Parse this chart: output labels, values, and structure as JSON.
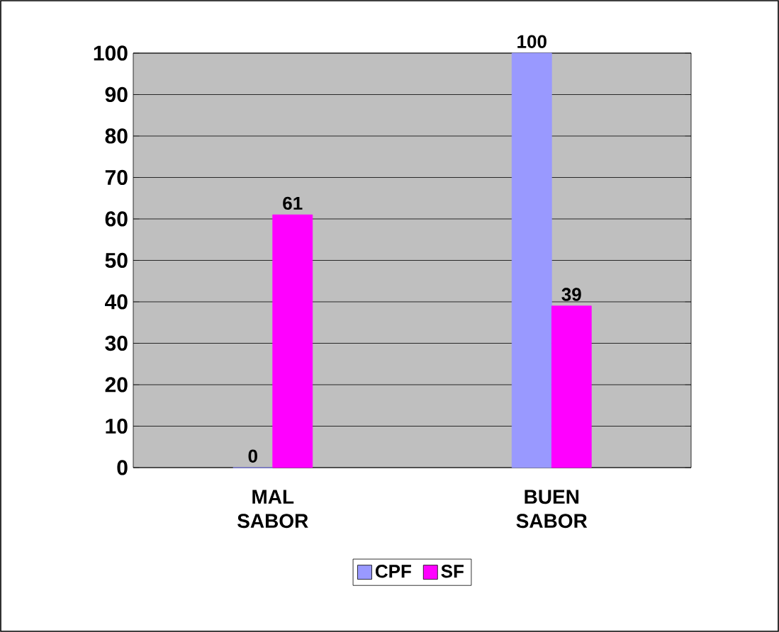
{
  "chart_data": {
    "type": "bar",
    "categories": [
      "MAL SABOR",
      "BUEN SABOR"
    ],
    "series": [
      {
        "name": "CPF",
        "color": "#9999ff",
        "values": [
          0,
          100
        ]
      },
      {
        "name": "SF",
        "color": "#ff00ff",
        "values": [
          61,
          39
        ]
      }
    ],
    "ylim": [
      0,
      100
    ],
    "yticks": [
      0,
      10,
      20,
      30,
      40,
      50,
      60,
      70,
      80,
      90,
      100
    ],
    "grid": "y",
    "legend": "bottom",
    "data_labels": true
  }
}
